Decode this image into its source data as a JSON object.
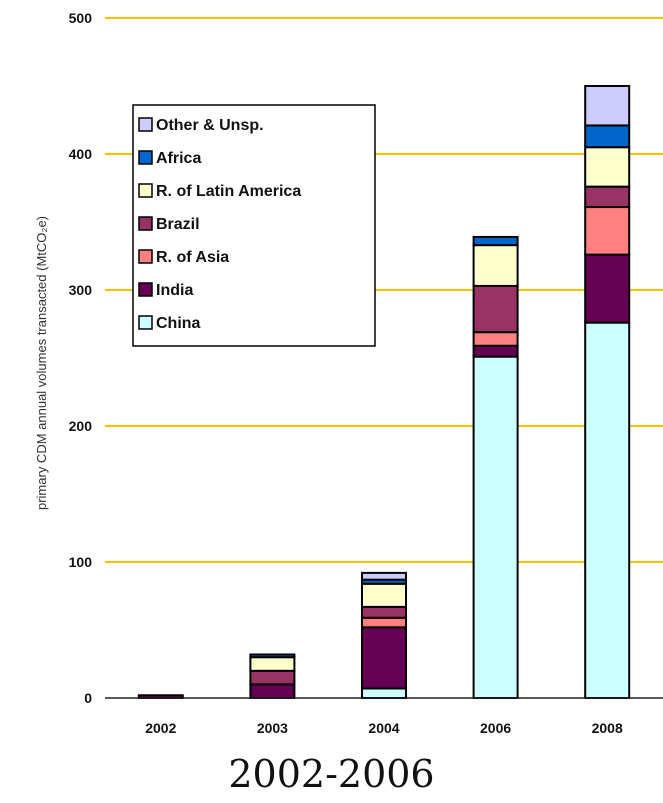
{
  "chart_data": {
    "type": "bar",
    "stacked": true,
    "categories": [
      "2002",
      "2003",
      "2004",
      "2006",
      "2008"
    ],
    "series": [
      {
        "name": "China",
        "color": "#ccffff",
        "values": [
          0,
          0,
          7,
          251,
          276
        ]
      },
      {
        "name": "India",
        "color": "#660055",
        "values": [
          2,
          10,
          45,
          8,
          50
        ]
      },
      {
        "name": "R. of Asia",
        "color": "#ff8080",
        "values": [
          0,
          0,
          7,
          10,
          35
        ]
      },
      {
        "name": "Brazil",
        "color": "#993366",
        "values": [
          0,
          10,
          8,
          34,
          15
        ]
      },
      {
        "name": "R. of Latin America",
        "color": "#ffffcc",
        "values": [
          0,
          10,
          17,
          30,
          29
        ]
      },
      {
        "name": "Africa",
        "color": "#0066cc",
        "values": [
          0,
          2,
          3,
          6,
          16
        ]
      },
      {
        "name": "Other & Unsp.",
        "color": "#ccccff",
        "values": [
          0,
          0,
          5,
          0,
          29
        ]
      }
    ],
    "ylabel": "primary CDM annual volumes transacted (MtCO₂e)",
    "xlabel": "",
    "title": "",
    "ylim": [
      0,
      500
    ],
    "yticks": [
      0,
      100,
      200,
      300,
      400,
      500
    ],
    "grid": true,
    "grid_color": "#f5c400",
    "legend_position": "top-left"
  },
  "caption": "2002-2006"
}
